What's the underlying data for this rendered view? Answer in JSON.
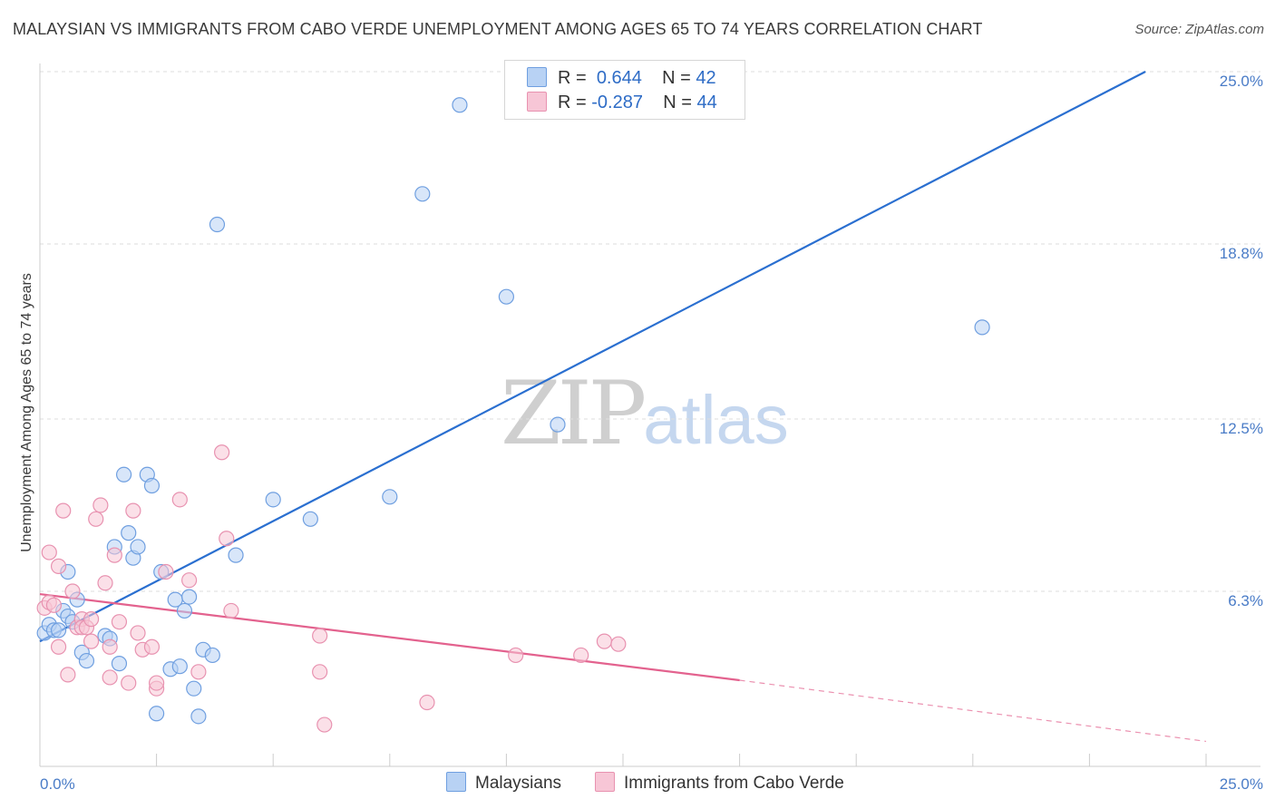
{
  "title": "MALAYSIAN VS IMMIGRANTS FROM CABO VERDE UNEMPLOYMENT AMONG AGES 65 TO 74 YEARS CORRELATION CHART",
  "source": "Source: ZipAtlas.com",
  "watermark": {
    "zip": "ZIP",
    "atlas": "atlas"
  },
  "legend": {
    "r_label": "R =",
    "n_label": "N =",
    "series": [
      {
        "r": "0.644",
        "n": "42"
      },
      {
        "r": "-0.287",
        "n": "44"
      }
    ]
  },
  "bottom_legend": [
    "Malaysians",
    "Immigrants from Cabo Verde"
  ],
  "colors": {
    "blue_fill": "#b8d2f4",
    "blue_stroke": "#6f9fe0",
    "blue_line": "#2a6fd0",
    "pink_fill": "#f7c6d6",
    "pink_stroke": "#e892b0",
    "pink_line": "#e3628e",
    "tick_text": "#4a7cc7",
    "grid": "#dddddd"
  },
  "chart_data": {
    "type": "scatter",
    "title": "MALAYSIAN VS IMMIGRANTS FROM CABO VERDE UNEMPLOYMENT AMONG AGES 65 TO 74 YEARS CORRELATION CHART",
    "xlabel": "",
    "ylabel": "Unemployment Among Ages 65 to 74 years",
    "xlim": [
      0,
      25
    ],
    "ylim": [
      0,
      25
    ],
    "x_tick_labels": [
      "0.0%",
      "25.0%"
    ],
    "y_ticks": [
      6.3,
      12.5,
      18.8,
      25.0
    ],
    "y_tick_labels": [
      "6.3%",
      "12.5%",
      "18.8%",
      "25.0%"
    ],
    "grid": true,
    "legend_position": "top-center",
    "series": [
      {
        "name": "Malaysians",
        "color": "#6f9fe0",
        "points": [
          [
            0.1,
            4.8
          ],
          [
            0.2,
            5.1
          ],
          [
            0.3,
            4.9
          ],
          [
            0.4,
            4.9
          ],
          [
            0.5,
            5.6
          ],
          [
            0.6,
            5.4
          ],
          [
            0.6,
            7.0
          ],
          [
            0.7,
            5.2
          ],
          [
            0.8,
            6.0
          ],
          [
            0.9,
            4.1
          ],
          [
            1.0,
            3.8
          ],
          [
            1.4,
            4.7
          ],
          [
            1.5,
            4.6
          ],
          [
            1.6,
            7.9
          ],
          [
            1.7,
            3.7
          ],
          [
            1.8,
            10.5
          ],
          [
            1.9,
            8.4
          ],
          [
            2.0,
            7.5
          ],
          [
            2.1,
            7.9
          ],
          [
            2.3,
            10.5
          ],
          [
            2.4,
            10.1
          ],
          [
            2.5,
            1.9
          ],
          [
            2.6,
            7.0
          ],
          [
            2.8,
            3.5
          ],
          [
            2.9,
            6.0
          ],
          [
            3.0,
            3.6
          ],
          [
            3.1,
            5.6
          ],
          [
            3.2,
            6.1
          ],
          [
            3.3,
            2.8
          ],
          [
            3.4,
            1.8
          ],
          [
            3.5,
            4.2
          ],
          [
            3.7,
            4.0
          ],
          [
            3.8,
            19.5
          ],
          [
            4.2,
            7.6
          ],
          [
            5.0,
            9.6
          ],
          [
            5.8,
            8.9
          ],
          [
            7.5,
            9.7
          ],
          [
            8.2,
            20.6
          ],
          [
            9.0,
            23.8
          ],
          [
            10.0,
            16.9
          ],
          [
            11.1,
            12.3
          ],
          [
            20.2,
            15.8
          ]
        ]
      },
      {
        "name": "Immigrants from Cabo Verde",
        "color": "#e892b0",
        "points": [
          [
            0.1,
            5.7
          ],
          [
            0.2,
            5.9
          ],
          [
            0.2,
            7.7
          ],
          [
            0.3,
            5.8
          ],
          [
            0.4,
            7.2
          ],
          [
            0.4,
            4.3
          ],
          [
            0.5,
            9.2
          ],
          [
            0.6,
            3.3
          ],
          [
            0.7,
            6.3
          ],
          [
            0.8,
            5.0
          ],
          [
            0.9,
            5.3
          ],
          [
            0.9,
            5.0
          ],
          [
            1.0,
            5.0
          ],
          [
            1.1,
            5.3
          ],
          [
            1.1,
            4.5
          ],
          [
            1.2,
            8.9
          ],
          [
            1.3,
            9.4
          ],
          [
            1.4,
            6.6
          ],
          [
            1.5,
            3.2
          ],
          [
            1.5,
            4.3
          ],
          [
            1.6,
            7.6
          ],
          [
            1.7,
            5.2
          ],
          [
            1.9,
            3.0
          ],
          [
            2.0,
            9.2
          ],
          [
            2.1,
            4.8
          ],
          [
            2.2,
            4.2
          ],
          [
            2.4,
            4.3
          ],
          [
            2.5,
            2.8
          ],
          [
            2.5,
            3.0
          ],
          [
            2.7,
            7.0
          ],
          [
            3.0,
            9.6
          ],
          [
            3.2,
            6.7
          ],
          [
            3.4,
            3.4
          ],
          [
            3.9,
            11.3
          ],
          [
            4.0,
            8.2
          ],
          [
            4.1,
            5.6
          ],
          [
            6.0,
            4.7
          ],
          [
            6.0,
            3.4
          ],
          [
            6.1,
            1.5
          ],
          [
            8.3,
            2.3
          ],
          [
            10.2,
            4.0
          ],
          [
            11.6,
            4.0
          ],
          [
            12.1,
            4.5
          ],
          [
            12.4,
            4.4
          ]
        ]
      }
    ],
    "trend_lines": [
      {
        "series": "Malaysians",
        "x": [
          0.0,
          23.7
        ],
        "y": [
          4.5,
          25.0
        ]
      },
      {
        "series": "Immigrants from Cabo Verde",
        "x": [
          0.0,
          15.0
        ],
        "y": [
          6.2,
          3.1
        ],
        "dashed_extension": [
          25.0,
          0.9
        ]
      }
    ]
  }
}
